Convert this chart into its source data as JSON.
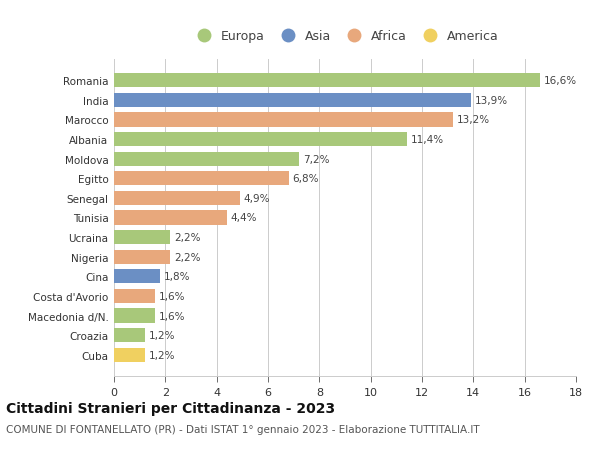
{
  "countries": [
    "Romania",
    "India",
    "Marocco",
    "Albania",
    "Moldova",
    "Egitto",
    "Senegal",
    "Tunisia",
    "Ucraina",
    "Nigeria",
    "Cina",
    "Costa d'Avorio",
    "Macedonia d/N.",
    "Croazia",
    "Cuba"
  ],
  "values": [
    16.6,
    13.9,
    13.2,
    11.4,
    7.2,
    6.8,
    4.9,
    4.4,
    2.2,
    2.2,
    1.8,
    1.6,
    1.6,
    1.2,
    1.2
  ],
  "labels": [
    "16,6%",
    "13,9%",
    "13,2%",
    "11,4%",
    "7,2%",
    "6,8%",
    "4,9%",
    "4,4%",
    "2,2%",
    "2,2%",
    "1,8%",
    "1,6%",
    "1,6%",
    "1,2%",
    "1,2%"
  ],
  "regions": [
    "Europa",
    "Asia",
    "Africa",
    "Europa",
    "Europa",
    "Africa",
    "Africa",
    "Africa",
    "Europa",
    "Africa",
    "Asia",
    "Africa",
    "Europa",
    "Europa",
    "America"
  ],
  "region_colors": {
    "Europa": "#a8c87a",
    "Asia": "#6b8fc4",
    "Africa": "#e8a87c",
    "America": "#f0d060"
  },
  "legend_order": [
    "Europa",
    "Asia",
    "Africa",
    "America"
  ],
  "xlim": [
    0,
    18
  ],
  "xticks": [
    0,
    2,
    4,
    6,
    8,
    10,
    12,
    14,
    16,
    18
  ],
  "title": "Cittadini Stranieri per Cittadinanza - 2023",
  "subtitle": "COMUNE DI FONTANELLATO (PR) - Dati ISTAT 1° gennaio 2023 - Elaborazione TUTTITALIA.IT",
  "bg_color": "#ffffff",
  "grid_color": "#cccccc",
  "bar_height": 0.72,
  "label_fontsize": 7.5,
  "ytick_fontsize": 7.5,
  "xtick_fontsize": 8,
  "title_fontsize": 10,
  "subtitle_fontsize": 7.5
}
